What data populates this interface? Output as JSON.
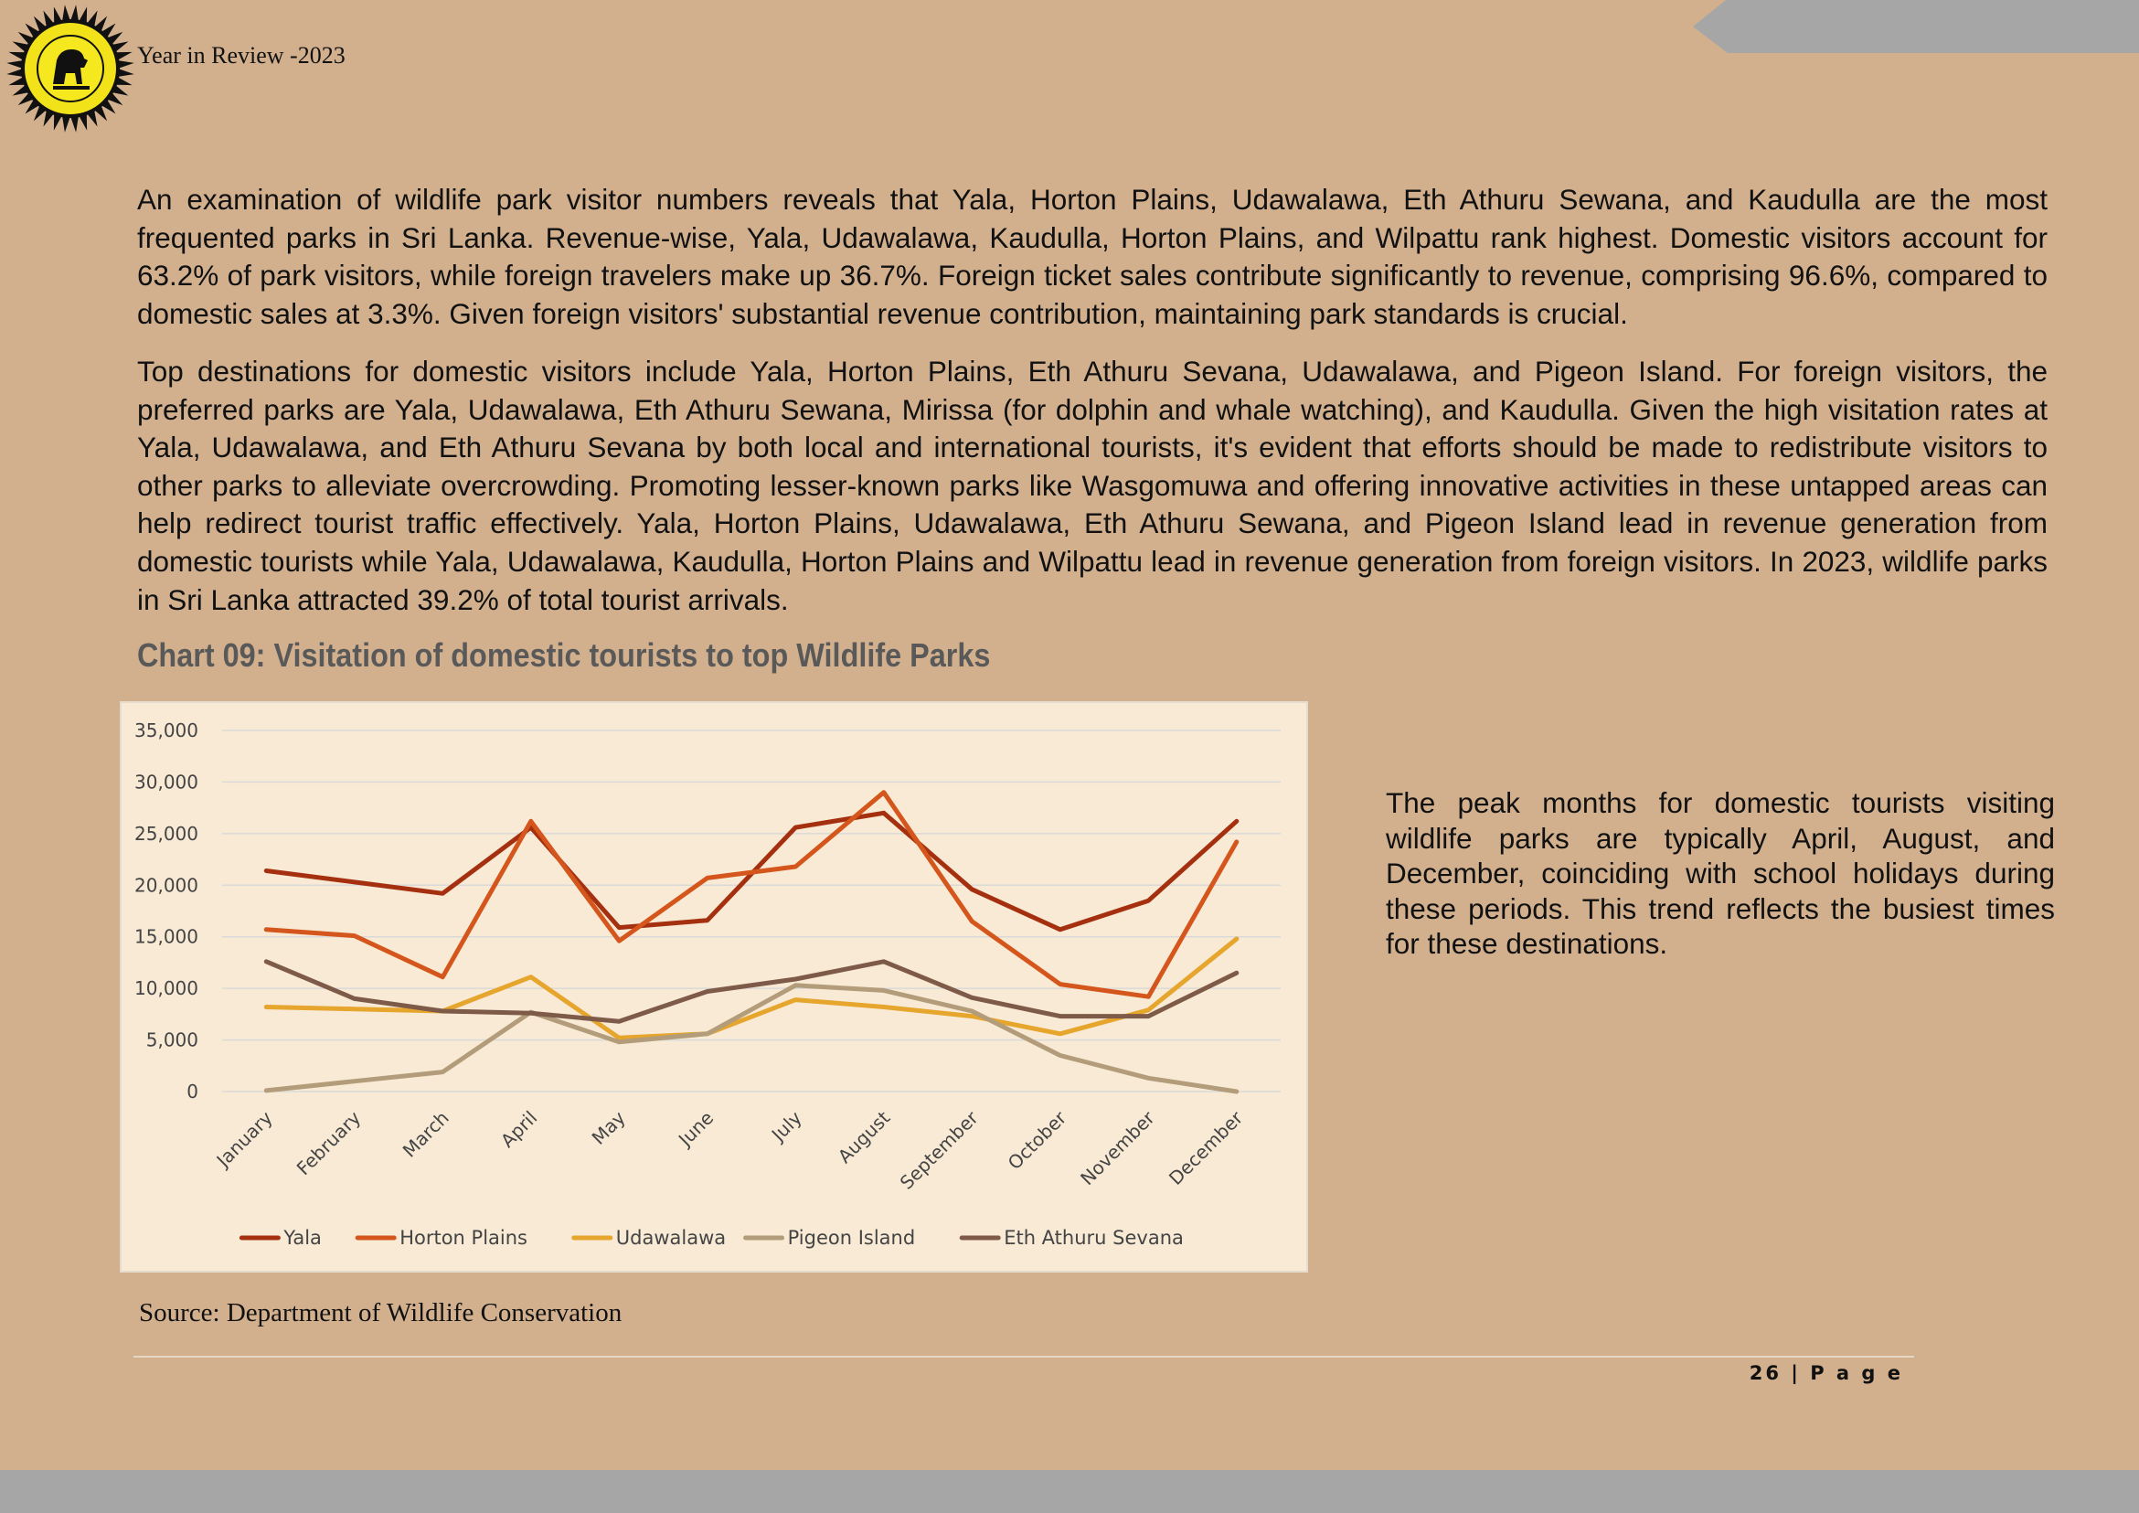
{
  "header": {
    "title": "Year in Review -2023",
    "logo_icon": "department-emblem-icon"
  },
  "paragraphs": [
    "An examination of wildlife park visitor numbers reveals that Yala, Horton Plains, Udawalawa, Eth Athuru Sewana, and Kaudulla are the most frequented parks in Sri Lanka. Revenue-wise, Yala, Udawalawa, Kaudulla, Horton Plains, and Wilpattu rank highest. Domestic visitors account for 63.2% of park visitors, while foreign travelers make up 36.7%. Foreign ticket sales contribute significantly to revenue, comprising 96.6%, compared to domestic sales at 3.3%. Given foreign visitors' substantial revenue contribution, maintaining park standards is crucial.",
    "Top destinations for domestic visitors include Yala, Horton Plains, Eth Athuru Sevana, Udawalawa, and Pigeon Island. For foreign visitors, the preferred parks are Yala, Udawalawa, Eth Athuru Sewana, Mirissa (for dolphin and whale watching), and Kaudulla. Given the high visitation rates at Yala, Udawalawa, and Eth Athuru Sevana by both local and international tourists, it's evident that efforts should be made to redistribute visitors to other parks to alleviate overcrowding. Promoting lesser-known parks like Wasgomuwa and offering innovative activities in these untapped areas can help redirect tourist traffic effectively. Yala, Horton Plains, Udawalawa, Eth Athuru Sewana, and Pigeon Island lead in revenue generation from domestic tourists while Yala, Udawalawa, Kaudulla, Horton Plains and Wilpattu lead in revenue generation from foreign visitors. In 2023, wildlife parks in Sri Lanka attracted 39.2% of total tourist arrivals."
  ],
  "chart_heading": "Chart 09: Visitation of domestic tourists to top Wildlife Parks",
  "chart_data": {
    "type": "line",
    "title": "",
    "xlabel": "",
    "ylabel": "",
    "ylim": [
      0,
      35000
    ],
    "yticks": [
      0,
      5000,
      10000,
      15000,
      20000,
      25000,
      30000,
      35000
    ],
    "ytick_labels": [
      "0",
      "5,000",
      "10,000",
      "15,000",
      "20,000",
      "25,000",
      "30,000",
      "35,000"
    ],
    "grid": true,
    "legend_position": "bottom",
    "categories": [
      "January",
      "February",
      "March",
      "April",
      "May",
      "June",
      "July",
      "August",
      "September",
      "October",
      "November",
      "December"
    ],
    "series": [
      {
        "name": "Yala",
        "color": "#a5300f",
        "values": [
          21400,
          20300,
          19200,
          25600,
          15900,
          16600,
          25600,
          27000,
          19600,
          15700,
          18500,
          26200
        ]
      },
      {
        "name": "Horton Plains",
        "color": "#d4561c",
        "values": [
          15700,
          15100,
          11100,
          26200,
          14600,
          20700,
          21800,
          29000,
          16500,
          10400,
          9200,
          24200
        ]
      },
      {
        "name": "Udawalawa",
        "color": "#e6a52c",
        "values": [
          8200,
          8000,
          7800,
          11100,
          5200,
          5600,
          8900,
          8200,
          7300,
          5600,
          7900,
          14800
        ]
      },
      {
        "name": "Pigeon Island",
        "color": "#b29c7a",
        "values": [
          100,
          1000,
          1900,
          7700,
          4800,
          5600,
          10300,
          9800,
          7800,
          3500,
          1300,
          0
        ]
      },
      {
        "name": "Eth Athuru Sevana",
        "color": "#7e5a48",
        "values": [
          12600,
          9000,
          7800,
          7600,
          6800,
          9700,
          10900,
          12600,
          9100,
          7300,
          7300,
          11500
        ]
      }
    ]
  },
  "side_note": "The peak months for domestic tourists visiting wildlife parks are typically April, August, and December, coinciding with school holidays during these periods. This trend reflects the busiest times for these destinations.",
  "source": "Source: Department of Wildlife  Conservation",
  "page_number": "26 | P a g e",
  "colors": {
    "page_background": "#d2b08e",
    "chart_background": "#f8ead5",
    "heading_gray": "#595959",
    "bar_gray": "#a6a6a6"
  }
}
